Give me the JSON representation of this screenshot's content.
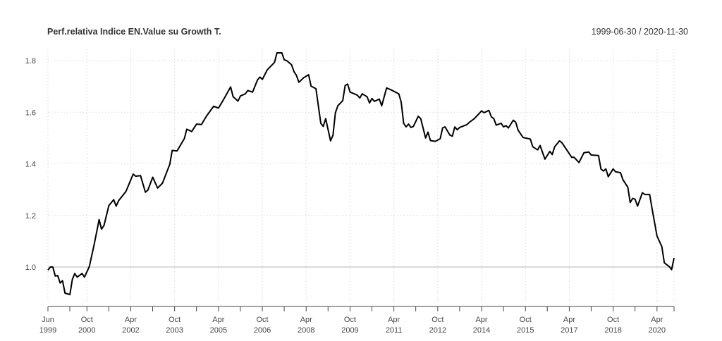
{
  "chart_data": {
    "type": "line",
    "title": "Perf.relativa Indice EN.Value su Growth T.",
    "date_range": "1999-06-30 / 2020-11-30",
    "xlabel": "",
    "ylabel": "",
    "xlim": [
      "1999-06",
      "2020-11"
    ],
    "ylim": [
      0.86,
      1.84
    ],
    "grid": true,
    "reference_line": 1.0,
    "line_color": "#000000",
    "y_ticks": [
      1.0,
      1.2,
      1.4,
      1.6,
      1.8
    ],
    "y_tick_labels": [
      "1.0",
      "1.2",
      "1.4",
      "1.6",
      "1.8"
    ],
    "x_ticks": [
      {
        "date": "1999-06",
        "month": "Jun",
        "year": "1999"
      },
      {
        "date": "2000-10",
        "month": "Oct",
        "year": "2000"
      },
      {
        "date": "2002-04",
        "month": "Apr",
        "year": "2002"
      },
      {
        "date": "2003-10",
        "month": "Oct",
        "year": "2003"
      },
      {
        "date": "2005-04",
        "month": "Apr",
        "year": "2005"
      },
      {
        "date": "2006-10",
        "month": "Oct",
        "year": "2006"
      },
      {
        "date": "2008-04",
        "month": "Apr",
        "year": "2008"
      },
      {
        "date": "2009-10",
        "month": "Oct",
        "year": "2009"
      },
      {
        "date": "2011-04",
        "month": "Apr",
        "year": "2011"
      },
      {
        "date": "2012-10",
        "month": "Oct",
        "year": "2012"
      },
      {
        "date": "2014-04",
        "month": "Apr",
        "year": "2014"
      },
      {
        "date": "2015-10",
        "month": "Oct",
        "year": "2015"
      },
      {
        "date": "2017-04",
        "month": "Apr",
        "year": "2017"
      },
      {
        "date": "2018-10",
        "month": "Oct",
        "year": "2018"
      },
      {
        "date": "2020-04",
        "month": "Apr",
        "year": "2020"
      }
    ],
    "series": [
      {
        "x": [
          "1999-06",
          "1999-07",
          "1999-08",
          "1999-09",
          "1999-10",
          "1999-11",
          "1999-12",
          "2000-01",
          "2000-03",
          "2000-04",
          "2000-05",
          "2000-06",
          "2000-08",
          "2000-09",
          "2000-11",
          "2001-01",
          "2001-03",
          "2001-04",
          "2001-05",
          "2001-07",
          "2001-09",
          "2001-10",
          "2001-11",
          "2002-02",
          "2002-05",
          "2002-06",
          "2002-08",
          "2002-10",
          "2002-11",
          "2003-01",
          "2003-03",
          "2003-05",
          "2003-08",
          "2003-09",
          "2003-11",
          "2004-02",
          "2004-03",
          "2004-05",
          "2004-07",
          "2004-09",
          "2004-11",
          "2005-02",
          "2005-04",
          "2005-06",
          "2005-09",
          "2005-10",
          "2005-12",
          "2006-01",
          "2006-03",
          "2006-04",
          "2006-06",
          "2006-08",
          "2006-09",
          "2006-10",
          "2006-12",
          "2007-03",
          "2007-04",
          "2007-06",
          "2007-07",
          "2007-08",
          "2007-10",
          "2007-11",
          "2007-12",
          "2008-01",
          "2008-03",
          "2008-05",
          "2008-06",
          "2008-08",
          "2008-10",
          "2008-11",
          "2008-12",
          "2009-02",
          "2009-03",
          "2009-04",
          "2009-05",
          "2009-07",
          "2009-08",
          "2009-09",
          "2009-10",
          "2010-01",
          "2010-02",
          "2010-03",
          "2010-05",
          "2010-06",
          "2010-07",
          "2010-08",
          "2010-10",
          "2010-11",
          "2011-01",
          "2011-03",
          "2011-06",
          "2011-07",
          "2011-08",
          "2011-09",
          "2011-10",
          "2011-11",
          "2011-12",
          "2012-02",
          "2012-03",
          "2012-05",
          "2012-06",
          "2012-07",
          "2012-09",
          "2012-11",
          "2012-12",
          "2013-01",
          "2013-03",
          "2013-04",
          "2013-05",
          "2013-06",
          "2013-07",
          "2013-10",
          "2013-11",
          "2014-01",
          "2014-04",
          "2014-05",
          "2014-07",
          "2014-08",
          "2014-09",
          "2014-10",
          "2014-12",
          "2015-01",
          "2015-02",
          "2015-03",
          "2015-05",
          "2015-06",
          "2015-07",
          "2015-09",
          "2015-10",
          "2015-12",
          "2016-01",
          "2016-03",
          "2016-04",
          "2016-06",
          "2016-08",
          "2016-09",
          "2016-10",
          "2016-12",
          "2017-01",
          "2017-05",
          "2017-06",
          "2017-08",
          "2017-10",
          "2017-12",
          "2018-01",
          "2018-04",
          "2018-05",
          "2018-06",
          "2018-07",
          "2018-08",
          "2018-10",
          "2018-11",
          "2019-01",
          "2019-02",
          "2019-04",
          "2019-05",
          "2019-06",
          "2019-07",
          "2019-08",
          "2019-10",
          "2019-11",
          "2020-01",
          "2020-02",
          "2020-04",
          "2020-06",
          "2020-07",
          "2020-09",
          "2020-10",
          "2020-11"
        ],
        "y": [
          0.988,
          1.0,
          1.0,
          0.965,
          0.967,
          0.938,
          0.947,
          0.899,
          0.893,
          0.952,
          0.975,
          0.961,
          0.975,
          0.961,
          1.002,
          1.088,
          1.184,
          1.147,
          1.161,
          1.238,
          1.261,
          1.236,
          1.257,
          1.293,
          1.36,
          1.352,
          1.354,
          1.29,
          1.298,
          1.348,
          1.306,
          1.325,
          1.398,
          1.452,
          1.45,
          1.498,
          1.534,
          1.525,
          1.554,
          1.552,
          1.584,
          1.623,
          1.616,
          1.648,
          1.698,
          1.66,
          1.643,
          1.663,
          1.671,
          1.684,
          1.678,
          1.725,
          1.736,
          1.727,
          1.764,
          1.793,
          1.83,
          1.83,
          1.803,
          1.8,
          1.784,
          1.757,
          1.743,
          1.716,
          1.734,
          1.745,
          1.701,
          1.691,
          1.557,
          1.545,
          1.575,
          1.489,
          1.511,
          1.598,
          1.625,
          1.645,
          1.703,
          1.709,
          1.678,
          1.666,
          1.655,
          1.671,
          1.66,
          1.636,
          1.653,
          1.642,
          1.651,
          1.625,
          1.694,
          1.686,
          1.671,
          1.639,
          1.557,
          1.543,
          1.554,
          1.541,
          1.545,
          1.584,
          1.575,
          1.5,
          1.523,
          1.49,
          1.487,
          1.497,
          1.539,
          1.543,
          1.511,
          1.507,
          1.543,
          1.532,
          1.541,
          1.552,
          1.561,
          1.575,
          1.605,
          1.598,
          1.607,
          1.582,
          1.575,
          1.55,
          1.557,
          1.543,
          1.548,
          1.539,
          1.569,
          1.561,
          1.53,
          1.502,
          1.5,
          1.496,
          1.466,
          1.454,
          1.471,
          1.418,
          1.448,
          1.436,
          1.466,
          1.489,
          1.481,
          1.425,
          1.425,
          1.405,
          1.443,
          1.446,
          1.434,
          1.432,
          1.38,
          1.372,
          1.38,
          1.35,
          1.38,
          1.369,
          1.366,
          1.339,
          1.309,
          1.25,
          1.266,
          1.263,
          1.236,
          1.288,
          1.281,
          1.281,
          1.225,
          1.12,
          1.079,
          1.016,
          1.002,
          0.99,
          1.035
        ]
      }
    ]
  }
}
